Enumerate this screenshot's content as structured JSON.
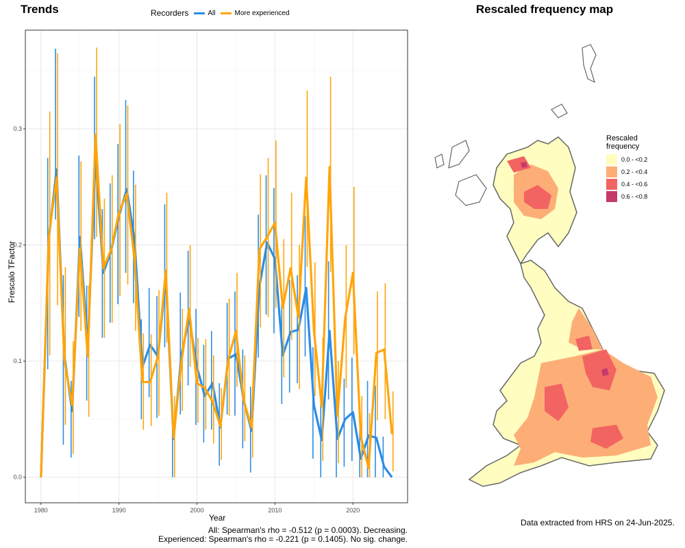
{
  "left_panel": {
    "title": "Trends",
    "stats": {
      "all": "All: Spearman's rho = -0.512 (p = 0.0003). Decreasing.",
      "experienced": "Experienced: Spearman's rho = -0.221 (p = 0.1405). No sig. change."
    }
  },
  "right_panel": {
    "title": "Rescaled frequency map",
    "legend_title": "Rescaled\nfrequency",
    "legend": [
      {
        "label": "0.0 - <0.2",
        "color": "#FFFDC0"
      },
      {
        "label": "0.2 - <0.4",
        "color": "#FDAE77"
      },
      {
        "label": "0.4 - <0.6",
        "color": "#F26461"
      },
      {
        "label": "0.6 - <0.8",
        "color": "#C43B6B"
      }
    ],
    "data_note": "Data extracted from HRS on 24-Jun-2025."
  },
  "chart_data": {
    "type": "line",
    "title": "Trends",
    "xlabel": "Year",
    "ylabel": "Frescalo TFactor",
    "legend_title": "Recorders",
    "legend_position": "top",
    "xlim": [
      1978,
      2027
    ],
    "ylim": [
      -0.022,
      0.385
    ],
    "x_ticks": [
      1980,
      1990,
      2000,
      2010,
      2020
    ],
    "y_ticks": [
      0.0,
      0.1,
      0.2,
      0.3
    ],
    "y_tick_labels": [
      "0.0",
      "0.1",
      "0.2",
      "0.3"
    ],
    "grid": true,
    "series": [
      {
        "name": "All",
        "color": "#2B8CE6",
        "x": [
          1980,
          1981,
          1982,
          1983,
          1984,
          1985,
          1986,
          1987,
          1988,
          1989,
          1990,
          1991,
          1992,
          1993,
          1994,
          1995,
          1996,
          1997,
          1998,
          1999,
          2000,
          2001,
          2002,
          2003,
          2004,
          2005,
          2006,
          2007,
          2008,
          2009,
          2010,
          2011,
          2012,
          2013,
          2014,
          2015,
          2016,
          2017,
          2018,
          2019,
          2020,
          2021,
          2022,
          2023,
          2024,
          2025
        ],
        "y": [
          0.0,
          0.205,
          0.265,
          0.105,
          0.057,
          0.207,
          0.113,
          0.275,
          0.176,
          0.195,
          0.225,
          0.248,
          0.205,
          0.095,
          0.114,
          0.104,
          0.172,
          0.033,
          0.105,
          0.137,
          0.095,
          0.07,
          0.081,
          0.043,
          0.102,
          0.106,
          0.066,
          0.04,
          0.164,
          0.202,
          0.188,
          0.105,
          0.125,
          0.127,
          0.163,
          0.062,
          0.032,
          0.126,
          0.033,
          0.05,
          0.056,
          0.016,
          0.036,
          0.034,
          0.009,
          0.0
        ],
        "lower": [
          0.0,
          0.093,
          0.222,
          0.028,
          0.017,
          0.138,
          0.066,
          0.205,
          0.12,
          0.133,
          0.149,
          0.176,
          0.15,
          0.05,
          0.069,
          0.051,
          0.112,
          0.0,
          0.054,
          0.079,
          0.045,
          0.03,
          0.041,
          0.01,
          0.054,
          0.053,
          0.025,
          0.004,
          0.103,
          0.14,
          0.124,
          0.063,
          0.073,
          0.081,
          0.104,
          0.016,
          0.0,
          0.067,
          0.0,
          0.009,
          0.014,
          0.0,
          0.0,
          0.0,
          0.0,
          0.0
        ],
        "upper": [
          0.0,
          0.275,
          0.369,
          0.174,
          0.083,
          0.277,
          0.165,
          0.345,
          0.231,
          0.253,
          0.287,
          0.325,
          0.264,
          0.136,
          0.163,
          0.156,
          0.235,
          0.06,
          0.159,
          0.195,
          0.145,
          0.114,
          0.126,
          0.081,
          0.15,
          0.16,
          0.11,
          0.078,
          0.226,
          0.26,
          0.249,
          0.15,
          0.17,
          0.174,
          0.225,
          0.112,
          0.066,
          0.186,
          0.071,
          0.085,
          0.103,
          0.04,
          0.083,
          0.079,
          0.035,
          0.0
        ]
      },
      {
        "name": "More experienced",
        "color": "#FFA50A",
        "x": [
          1980,
          1981,
          1982,
          1983,
          1984,
          1985,
          1986,
          1987,
          1988,
          1989,
          1990,
          1991,
          1992,
          1993,
          1994,
          1995,
          1996,
          1997,
          1998,
          1999,
          2000,
          2001,
          2002,
          2003,
          2004,
          2005,
          2006,
          2007,
          2008,
          2009,
          2010,
          2011,
          2012,
          2013,
          2014,
          2015,
          2016,
          2017,
          2018,
          2019,
          2020,
          2021,
          2022,
          2023,
          2024,
          2025
        ],
        "y": [
          0.0,
          0.207,
          0.258,
          0.101,
          0.062,
          0.197,
          0.104,
          0.295,
          0.18,
          0.196,
          0.228,
          0.244,
          0.188,
          0.082,
          0.082,
          0.104,
          0.178,
          0.034,
          0.099,
          0.145,
          0.081,
          0.077,
          0.065,
          0.044,
          0.101,
          0.126,
          0.066,
          0.043,
          0.196,
          0.207,
          0.219,
          0.146,
          0.18,
          0.138,
          0.258,
          0.126,
          0.061,
          0.267,
          0.053,
          0.137,
          0.176,
          0.035,
          0.008,
          0.107,
          0.11,
          0.037
        ],
        "lower": [
          -0.005,
          0.105,
          0.148,
          0.045,
          0.02,
          0.126,
          0.052,
          0.207,
          0.12,
          0.133,
          0.156,
          0.166,
          0.126,
          0.041,
          0.044,
          0.053,
          0.116,
          0.0,
          0.057,
          0.095,
          0.047,
          0.041,
          0.029,
          0.015,
          0.053,
          0.078,
          0.031,
          0.017,
          0.129,
          0.138,
          0.146,
          0.086,
          0.118,
          0.076,
          0.181,
          0.07,
          0.014,
          0.177,
          0.012,
          0.077,
          0.106,
          0.0,
          0.0,
          0.049,
          0.05,
          0.005
        ],
        "upper": [
          -0.005,
          0.315,
          0.365,
          0.181,
          0.117,
          0.272,
          0.165,
          0.37,
          0.24,
          0.26,
          0.304,
          0.32,
          0.252,
          0.124,
          0.123,
          0.161,
          0.245,
          0.07,
          0.145,
          0.2,
          0.12,
          0.119,
          0.105,
          0.077,
          0.154,
          0.176,
          0.105,
          0.073,
          0.261,
          0.275,
          0.29,
          0.205,
          0.245,
          0.2,
          0.333,
          0.185,
          0.12,
          0.345,
          0.1,
          0.2,
          0.25,
          0.07,
          0.055,
          0.16,
          0.167,
          0.074
        ]
      }
    ]
  }
}
